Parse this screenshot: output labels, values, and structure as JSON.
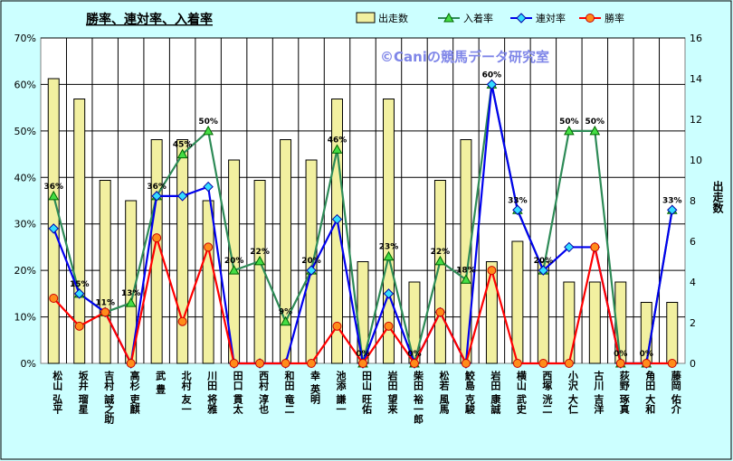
{
  "chart_data": {
    "type": "bar+line",
    "title": "勝率、連対率、入着率",
    "watermark": "©Caniの競馬データ研究室",
    "y2label": "出走数",
    "categories": [
      "松山 弘平",
      "坂井 瑠星",
      "吉村 誠之助",
      "高杉 吏麒",
      "武 豊",
      "北村 友一",
      "川田 将雅",
      "田口 貫太",
      "西村 淳也",
      "和田 竜二",
      "幸 英明",
      "池添 謙一",
      "田山 旺佑",
      "岩田 望来",
      "柴田 裕一郎",
      "松若 風馬",
      "鮫島 克駿",
      "岩田 康誠",
      "横山 武史",
      "西塚 洸二",
      "小沢 大仁",
      "古川 吉洋",
      "荻野 琢真",
      "角田 大和",
      "藤岡 佑介"
    ],
    "y_left": {
      "min": 0,
      "max": 70,
      "step": 10,
      "unit": "%",
      "ticks": [
        "0%",
        "10%",
        "20%",
        "30%",
        "40%",
        "50%",
        "60%",
        "70%"
      ]
    },
    "y_right": {
      "min": 0,
      "max": 16,
      "step": 2,
      "ticks": [
        "0",
        "2",
        "4",
        "6",
        "8",
        "10",
        "12",
        "14",
        "16"
      ]
    },
    "series": [
      {
        "name": "出走数",
        "kind": "bar",
        "axis": "right",
        "color": "#f2f0a0",
        "values": [
          14,
          13,
          9,
          8,
          11,
          11,
          8,
          10,
          9,
          11,
          10,
          13,
          5,
          13,
          4,
          9,
          11,
          5,
          6,
          5,
          4,
          4,
          4,
          3,
          3
        ]
      },
      {
        "name": "入着率",
        "kind": "line",
        "axis": "left",
        "color": "#2e8b57",
        "values": [
          36,
          15,
          11,
          13,
          36,
          45,
          50,
          20,
          22,
          9,
          20,
          46,
          0,
          23,
          0,
          22,
          18,
          60,
          33,
          20,
          50,
          50,
          0,
          0,
          33
        ]
      },
      {
        "name": "連対率",
        "kind": "line",
        "axis": "left",
        "color": "#0000ee",
        "values": [
          29,
          15,
          11,
          0,
          36,
          36,
          38,
          0,
          0,
          0,
          20,
          31,
          0,
          15,
          0,
          11,
          0,
          60,
          33,
          20,
          25,
          25,
          0,
          0,
          33
        ]
      },
      {
        "name": "勝率",
        "kind": "line",
        "axis": "left",
        "color": "#ff0000",
        "values": [
          14,
          8,
          11,
          0,
          27,
          9,
          25,
          0,
          0,
          0,
          0,
          8,
          0,
          8,
          0,
          11,
          0,
          20,
          0,
          0,
          0,
          25,
          0,
          0,
          0
        ]
      }
    ],
    "data_labels": [
      "36%",
      "15%",
      "11%",
      "13%",
      "36%",
      "45%",
      "50%",
      "20%",
      "22%",
      "9%",
      "20%",
      "46%",
      "0%",
      "23%",
      "0%",
      "22%",
      "18%",
      "60%",
      "33%",
      "20%",
      "50%",
      "50%",
      "0%",
      "0%",
      "33%"
    ],
    "legend_position": "top-right",
    "grid": true
  }
}
